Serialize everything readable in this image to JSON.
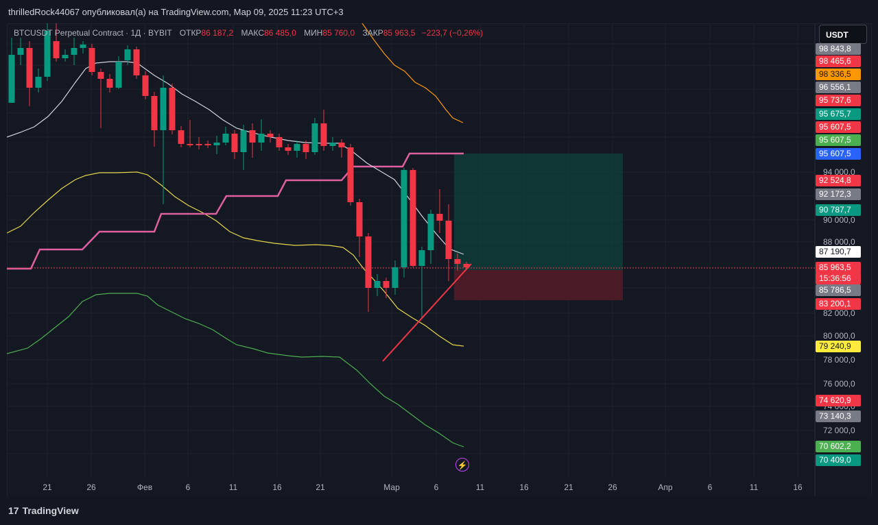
{
  "header": {
    "publish_text": "thrilledRock44067 опубликовал(а) на TradingView.com, Мар 09, 2025 11:23 UTC+3"
  },
  "legend": {
    "symbol": "BTCUSDT Perpetual Contract · 1Д · BYBIT",
    "open_label": "ОТКР",
    "open_value": "86 187,2",
    "high_label": "МАКС",
    "high_value": "86 485,0",
    "low_label": "МИН",
    "low_value": "85 760,0",
    "close_label": "ЗАКР",
    "close_value": "85 963,5",
    "change": "−223,7 (−0,26%)"
  },
  "currency_button": "USDT",
  "price_axis": {
    "ticks": [
      "94 000,0",
      "90 000,0",
      "88 000,0",
      "82 000,0",
      "80 000,0",
      "78 000,0",
      "76 000,0",
      "74 000,0",
      "72 000,0"
    ],
    "badges": [
      {
        "text": "98 843,8",
        "bg": "#787b86",
        "fg": "#ffffff"
      },
      {
        "text": "98 465,6",
        "bg": "#f23645",
        "fg": "#ffffff"
      },
      {
        "text": "98 336,5",
        "bg": "#ff9800",
        "fg": "#131722"
      },
      {
        "text": "96 556,1",
        "bg": "#787b86",
        "fg": "#ffffff"
      },
      {
        "text": "95 737,6",
        "bg": "#f23645",
        "fg": "#ffffff"
      },
      {
        "text": "95 675,7",
        "bg": "#089981",
        "fg": "#ffffff"
      },
      {
        "text": "95 607,5",
        "bg": "#f23645",
        "fg": "#ffffff"
      },
      {
        "text": "95 607,5",
        "bg": "#4caf50",
        "fg": "#ffffff"
      },
      {
        "text": "95 607,5",
        "bg": "#2962ff",
        "fg": "#ffffff"
      },
      {
        "text": "92 524,8",
        "bg": "#f23645",
        "fg": "#ffffff"
      },
      {
        "text": "92 172,3",
        "bg": "#787b86",
        "fg": "#ffffff"
      },
      {
        "text": "90 787,7",
        "bg": "#089981",
        "fg": "#ffffff"
      },
      {
        "text": "87 190,7",
        "bg": "#ffffff",
        "fg": "#131722"
      },
      {
        "text": "85 963,5",
        "bg": "#f23645",
        "fg": "#ffffff"
      },
      {
        "text": "15:36:56",
        "bg": "#f23645",
        "fg": "#ffffff"
      },
      {
        "text": "85 786,5",
        "bg": "#787b86",
        "fg": "#ffffff"
      },
      {
        "text": "83 200,1",
        "bg": "#f23645",
        "fg": "#ffffff"
      },
      {
        "text": "79 240,9",
        "bg": "#ffeb3b",
        "fg": "#131722"
      },
      {
        "text": "74 620,9",
        "bg": "#f23645",
        "fg": "#ffffff"
      },
      {
        "text": "73 140,3",
        "bg": "#787b86",
        "fg": "#ffffff"
      },
      {
        "text": "70 602,2",
        "bg": "#4caf50",
        "fg": "#ffffff"
      },
      {
        "text": "70 409,0",
        "bg": "#089981",
        "fg": "#ffffff"
      }
    ]
  },
  "time_axis": {
    "labels": [
      "21",
      "26",
      "Фев",
      "6",
      "11",
      "16",
      "21",
      "Мар",
      "6",
      "11",
      "16",
      "21",
      "26",
      "Апр",
      "6",
      "11",
      "16"
    ]
  },
  "footer": {
    "brand": "TradingView",
    "logo_mark": "17"
  },
  "colors": {
    "bull": "#089981",
    "bear": "#f23645",
    "background": "#131722",
    "supertrend": "#e0609f",
    "ma_white": "#d1d4dc",
    "band_orange": "#ff9800",
    "band_yellow": "#e8d84a",
    "band_green": "#4caf50",
    "trendline": "#f23645"
  },
  "icons": {
    "lightning": "lightning-icon",
    "logo": "tradingview-logo-icon"
  },
  "chart_data": {
    "type": "candlestick",
    "symbol": "BTCUSDT",
    "interval": "1Д",
    "dates": [
      "21",
      "26",
      "Фев",
      "6",
      "11",
      "16",
      "21",
      "Мар",
      "6",
      "11",
      "16",
      "21",
      "26",
      "Апр",
      "6",
      "11",
      "16"
    ],
    "last_close": 85963.5,
    "ylim": [
      69000,
      102000
    ]
  }
}
